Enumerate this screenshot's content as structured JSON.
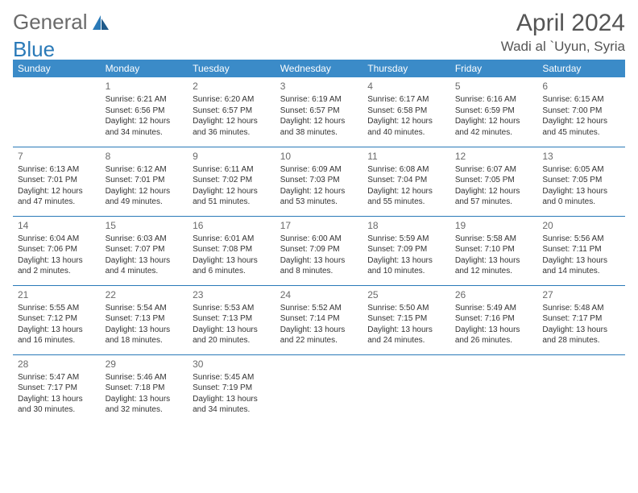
{
  "logo": {
    "text_general": "General",
    "text_blue": "Blue"
  },
  "header": {
    "month": "April 2024",
    "location": "Wadi al `Uyun, Syria"
  },
  "colors": {
    "header_bg": "#3b8bc8",
    "header_text": "#ffffff",
    "rule": "#2a7ab8",
    "body_text": "#333333",
    "daynum": "#6a6a6a",
    "logo_gray": "#6a6a6a",
    "logo_blue": "#2a7ab8",
    "title": "#555555",
    "background": "#ffffff"
  },
  "weekdays": [
    "Sunday",
    "Monday",
    "Tuesday",
    "Wednesday",
    "Thursday",
    "Friday",
    "Saturday"
  ],
  "cells": [
    [
      null,
      {
        "n": "1",
        "sr": "Sunrise: 6:21 AM",
        "ss": "Sunset: 6:56 PM",
        "d1": "Daylight: 12 hours",
        "d2": "and 34 minutes."
      },
      {
        "n": "2",
        "sr": "Sunrise: 6:20 AM",
        "ss": "Sunset: 6:57 PM",
        "d1": "Daylight: 12 hours",
        "d2": "and 36 minutes."
      },
      {
        "n": "3",
        "sr": "Sunrise: 6:19 AM",
        "ss": "Sunset: 6:57 PM",
        "d1": "Daylight: 12 hours",
        "d2": "and 38 minutes."
      },
      {
        "n": "4",
        "sr": "Sunrise: 6:17 AM",
        "ss": "Sunset: 6:58 PM",
        "d1": "Daylight: 12 hours",
        "d2": "and 40 minutes."
      },
      {
        "n": "5",
        "sr": "Sunrise: 6:16 AM",
        "ss": "Sunset: 6:59 PM",
        "d1": "Daylight: 12 hours",
        "d2": "and 42 minutes."
      },
      {
        "n": "6",
        "sr": "Sunrise: 6:15 AM",
        "ss": "Sunset: 7:00 PM",
        "d1": "Daylight: 12 hours",
        "d2": "and 45 minutes."
      }
    ],
    [
      {
        "n": "7",
        "sr": "Sunrise: 6:13 AM",
        "ss": "Sunset: 7:01 PM",
        "d1": "Daylight: 12 hours",
        "d2": "and 47 minutes."
      },
      {
        "n": "8",
        "sr": "Sunrise: 6:12 AM",
        "ss": "Sunset: 7:01 PM",
        "d1": "Daylight: 12 hours",
        "d2": "and 49 minutes."
      },
      {
        "n": "9",
        "sr": "Sunrise: 6:11 AM",
        "ss": "Sunset: 7:02 PM",
        "d1": "Daylight: 12 hours",
        "d2": "and 51 minutes."
      },
      {
        "n": "10",
        "sr": "Sunrise: 6:09 AM",
        "ss": "Sunset: 7:03 PM",
        "d1": "Daylight: 12 hours",
        "d2": "and 53 minutes."
      },
      {
        "n": "11",
        "sr": "Sunrise: 6:08 AM",
        "ss": "Sunset: 7:04 PM",
        "d1": "Daylight: 12 hours",
        "d2": "and 55 minutes."
      },
      {
        "n": "12",
        "sr": "Sunrise: 6:07 AM",
        "ss": "Sunset: 7:05 PM",
        "d1": "Daylight: 12 hours",
        "d2": "and 57 minutes."
      },
      {
        "n": "13",
        "sr": "Sunrise: 6:05 AM",
        "ss": "Sunset: 7:05 PM",
        "d1": "Daylight: 13 hours",
        "d2": "and 0 minutes."
      }
    ],
    [
      {
        "n": "14",
        "sr": "Sunrise: 6:04 AM",
        "ss": "Sunset: 7:06 PM",
        "d1": "Daylight: 13 hours",
        "d2": "and 2 minutes."
      },
      {
        "n": "15",
        "sr": "Sunrise: 6:03 AM",
        "ss": "Sunset: 7:07 PM",
        "d1": "Daylight: 13 hours",
        "d2": "and 4 minutes."
      },
      {
        "n": "16",
        "sr": "Sunrise: 6:01 AM",
        "ss": "Sunset: 7:08 PM",
        "d1": "Daylight: 13 hours",
        "d2": "and 6 minutes."
      },
      {
        "n": "17",
        "sr": "Sunrise: 6:00 AM",
        "ss": "Sunset: 7:09 PM",
        "d1": "Daylight: 13 hours",
        "d2": "and 8 minutes."
      },
      {
        "n": "18",
        "sr": "Sunrise: 5:59 AM",
        "ss": "Sunset: 7:09 PM",
        "d1": "Daylight: 13 hours",
        "d2": "and 10 minutes."
      },
      {
        "n": "19",
        "sr": "Sunrise: 5:58 AM",
        "ss": "Sunset: 7:10 PM",
        "d1": "Daylight: 13 hours",
        "d2": "and 12 minutes."
      },
      {
        "n": "20",
        "sr": "Sunrise: 5:56 AM",
        "ss": "Sunset: 7:11 PM",
        "d1": "Daylight: 13 hours",
        "d2": "and 14 minutes."
      }
    ],
    [
      {
        "n": "21",
        "sr": "Sunrise: 5:55 AM",
        "ss": "Sunset: 7:12 PM",
        "d1": "Daylight: 13 hours",
        "d2": "and 16 minutes."
      },
      {
        "n": "22",
        "sr": "Sunrise: 5:54 AM",
        "ss": "Sunset: 7:13 PM",
        "d1": "Daylight: 13 hours",
        "d2": "and 18 minutes."
      },
      {
        "n": "23",
        "sr": "Sunrise: 5:53 AM",
        "ss": "Sunset: 7:13 PM",
        "d1": "Daylight: 13 hours",
        "d2": "and 20 minutes."
      },
      {
        "n": "24",
        "sr": "Sunrise: 5:52 AM",
        "ss": "Sunset: 7:14 PM",
        "d1": "Daylight: 13 hours",
        "d2": "and 22 minutes."
      },
      {
        "n": "25",
        "sr": "Sunrise: 5:50 AM",
        "ss": "Sunset: 7:15 PM",
        "d1": "Daylight: 13 hours",
        "d2": "and 24 minutes."
      },
      {
        "n": "26",
        "sr": "Sunrise: 5:49 AM",
        "ss": "Sunset: 7:16 PM",
        "d1": "Daylight: 13 hours",
        "d2": "and 26 minutes."
      },
      {
        "n": "27",
        "sr": "Sunrise: 5:48 AM",
        "ss": "Sunset: 7:17 PM",
        "d1": "Daylight: 13 hours",
        "d2": "and 28 minutes."
      }
    ],
    [
      {
        "n": "28",
        "sr": "Sunrise: 5:47 AM",
        "ss": "Sunset: 7:17 PM",
        "d1": "Daylight: 13 hours",
        "d2": "and 30 minutes."
      },
      {
        "n": "29",
        "sr": "Sunrise: 5:46 AM",
        "ss": "Sunset: 7:18 PM",
        "d1": "Daylight: 13 hours",
        "d2": "and 32 minutes."
      },
      {
        "n": "30",
        "sr": "Sunrise: 5:45 AM",
        "ss": "Sunset: 7:19 PM",
        "d1": "Daylight: 13 hours",
        "d2": "and 34 minutes."
      },
      null,
      null,
      null,
      null
    ]
  ]
}
